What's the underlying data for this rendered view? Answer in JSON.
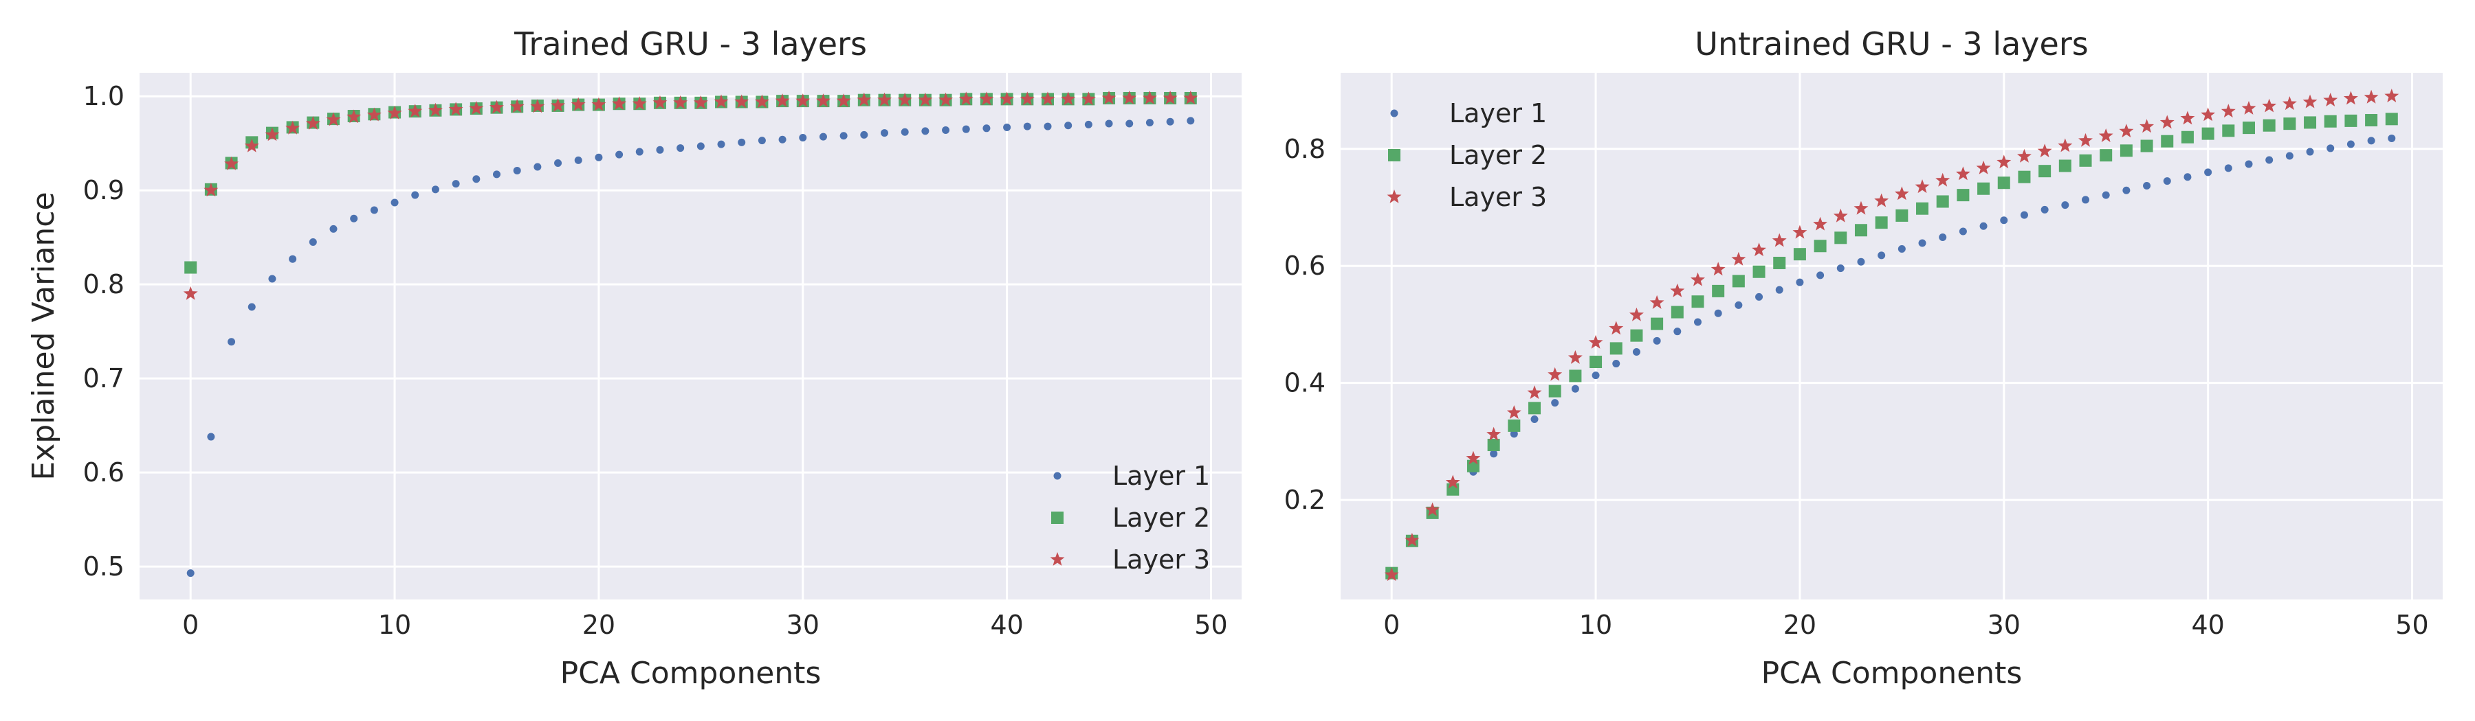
{
  "chart_data": [
    {
      "type": "scatter",
      "title": "Trained GRU - 3 layers",
      "xlabel": "PCA Components",
      "ylabel": "Explained Variance",
      "xlim": [
        -2.5,
        51.5
      ],
      "ylim": [
        0.465,
        1.025
      ],
      "xticks": [
        0,
        10,
        20,
        30,
        40,
        50
      ],
      "yticks": [
        0.5,
        0.6,
        0.7,
        0.8,
        0.9,
        1.0
      ],
      "ytick_labels": [
        "0.5",
        "0.6",
        "0.7",
        "0.8",
        "0.9",
        "1.0"
      ],
      "grid": true,
      "legend_position": "lower-right",
      "x": [
        0,
        1,
        2,
        3,
        4,
        5,
        6,
        7,
        8,
        9,
        10,
        11,
        12,
        13,
        14,
        15,
        16,
        17,
        18,
        19,
        20,
        21,
        22,
        23,
        24,
        25,
        26,
        27,
        28,
        29,
        30,
        31,
        32,
        33,
        34,
        35,
        36,
        37,
        38,
        39,
        40,
        41,
        42,
        43,
        44,
        45,
        46,
        47,
        48,
        49
      ],
      "series": [
        {
          "name": "Layer 1",
          "marker": "dot",
          "color": "#4c72b0",
          "values": [
            0.493,
            0.638,
            0.739,
            0.776,
            0.806,
            0.827,
            0.845,
            0.859,
            0.87,
            0.879,
            0.887,
            0.895,
            0.901,
            0.907,
            0.912,
            0.917,
            0.921,
            0.925,
            0.929,
            0.932,
            0.935,
            0.938,
            0.941,
            0.943,
            0.945,
            0.947,
            0.949,
            0.951,
            0.953,
            0.954,
            0.956,
            0.957,
            0.958,
            0.959,
            0.961,
            0.962,
            0.963,
            0.964,
            0.965,
            0.966,
            0.967,
            0.968,
            0.968,
            0.969,
            0.97,
            0.971,
            0.971,
            0.972,
            0.973,
            0.974
          ]
        },
        {
          "name": "Layer 2",
          "marker": "square",
          "color": "#55a868",
          "values": [
            0.818,
            0.901,
            0.929,
            0.951,
            0.961,
            0.967,
            0.972,
            0.976,
            0.979,
            0.981,
            0.983,
            0.984,
            0.985,
            0.986,
            0.987,
            0.988,
            0.989,
            0.99,
            0.99,
            0.991,
            0.991,
            0.992,
            0.992,
            0.993,
            0.993,
            0.993,
            0.994,
            0.994,
            0.994,
            0.995,
            0.995,
            0.995,
            0.995,
            0.996,
            0.996,
            0.996,
            0.996,
            0.996,
            0.997,
            0.997,
            0.997,
            0.997,
            0.997,
            0.997,
            0.997,
            0.998,
            0.998,
            0.998,
            0.998,
            0.998
          ]
        },
        {
          "name": "Layer 3",
          "marker": "star",
          "color": "#c44e52",
          "values": [
            0.79,
            0.9,
            0.928,
            0.947,
            0.959,
            0.966,
            0.971,
            0.975,
            0.978,
            0.98,
            0.982,
            0.984,
            0.985,
            0.986,
            0.987,
            0.988,
            0.989,
            0.989,
            0.99,
            0.991,
            0.991,
            0.992,
            0.992,
            0.993,
            0.993,
            0.993,
            0.994,
            0.994,
            0.994,
            0.995,
            0.995,
            0.995,
            0.995,
            0.996,
            0.996,
            0.996,
            0.996,
            0.996,
            0.997,
            0.997,
            0.997,
            0.997,
            0.997,
            0.997,
            0.997,
            0.998,
            0.998,
            0.998,
            0.998,
            0.998
          ]
        }
      ]
    },
    {
      "type": "scatter",
      "title": "Untrained GRU - 3 layers",
      "xlabel": "PCA Components",
      "ylabel": "",
      "xlim": [
        -2.5,
        51.5
      ],
      "ylim": [
        0.03,
        0.93
      ],
      "xticks": [
        0,
        10,
        20,
        30,
        40,
        50
      ],
      "yticks": [
        0.2,
        0.4,
        0.6,
        0.8
      ],
      "ytick_labels": [
        "0.2",
        "0.4",
        "0.6",
        "0.8"
      ],
      "grid": true,
      "legend_position": "upper-left",
      "x": [
        0,
        1,
        2,
        3,
        4,
        5,
        6,
        7,
        8,
        9,
        10,
        11,
        12,
        13,
        14,
        15,
        16,
        17,
        18,
        19,
        20,
        21,
        22,
        23,
        24,
        25,
        26,
        27,
        28,
        29,
        30,
        31,
        32,
        33,
        34,
        35,
        36,
        37,
        38,
        39,
        40,
        41,
        42,
        43,
        44,
        45,
        46,
        47,
        48,
        49
      ],
      "series": [
        {
          "name": "Layer 1",
          "marker": "dot",
          "color": "#4c72b0",
          "values": [
            0.072,
            0.128,
            0.175,
            0.215,
            0.248,
            0.279,
            0.313,
            0.338,
            0.366,
            0.39,
            0.413,
            0.433,
            0.453,
            0.472,
            0.488,
            0.504,
            0.519,
            0.533,
            0.547,
            0.559,
            0.572,
            0.584,
            0.596,
            0.607,
            0.618,
            0.629,
            0.639,
            0.649,
            0.659,
            0.668,
            0.678,
            0.687,
            0.696,
            0.704,
            0.713,
            0.721,
            0.729,
            0.737,
            0.745,
            0.752,
            0.76,
            0.767,
            0.774,
            0.781,
            0.788,
            0.795,
            0.801,
            0.808,
            0.814,
            0.818
          ]
        },
        {
          "name": "Layer 2",
          "marker": "square",
          "color": "#55a868",
          "values": [
            0.075,
            0.13,
            0.178,
            0.218,
            0.258,
            0.294,
            0.327,
            0.357,
            0.386,
            0.412,
            0.436,
            0.459,
            0.481,
            0.501,
            0.521,
            0.539,
            0.557,
            0.574,
            0.59,
            0.605,
            0.62,
            0.634,
            0.648,
            0.661,
            0.674,
            0.686,
            0.698,
            0.71,
            0.721,
            0.732,
            0.742,
            0.752,
            0.762,
            0.771,
            0.78,
            0.789,
            0.797,
            0.805,
            0.813,
            0.82,
            0.826,
            0.831,
            0.836,
            0.84,
            0.843,
            0.845,
            0.847,
            0.848,
            0.849,
            0.851
          ]
        },
        {
          "name": "Layer 3",
          "marker": "star",
          "color": "#c44e52",
          "values": [
            0.072,
            0.131,
            0.183,
            0.23,
            0.271,
            0.312,
            0.349,
            0.383,
            0.414,
            0.443,
            0.469,
            0.493,
            0.516,
            0.537,
            0.557,
            0.576,
            0.594,
            0.611,
            0.627,
            0.643,
            0.657,
            0.671,
            0.685,
            0.698,
            0.711,
            0.723,
            0.735,
            0.746,
            0.757,
            0.767,
            0.777,
            0.787,
            0.796,
            0.805,
            0.814,
            0.822,
            0.83,
            0.838,
            0.845,
            0.852,
            0.858,
            0.864,
            0.869,
            0.873,
            0.877,
            0.88,
            0.883,
            0.886,
            0.888,
            0.89
          ]
        }
      ]
    }
  ]
}
